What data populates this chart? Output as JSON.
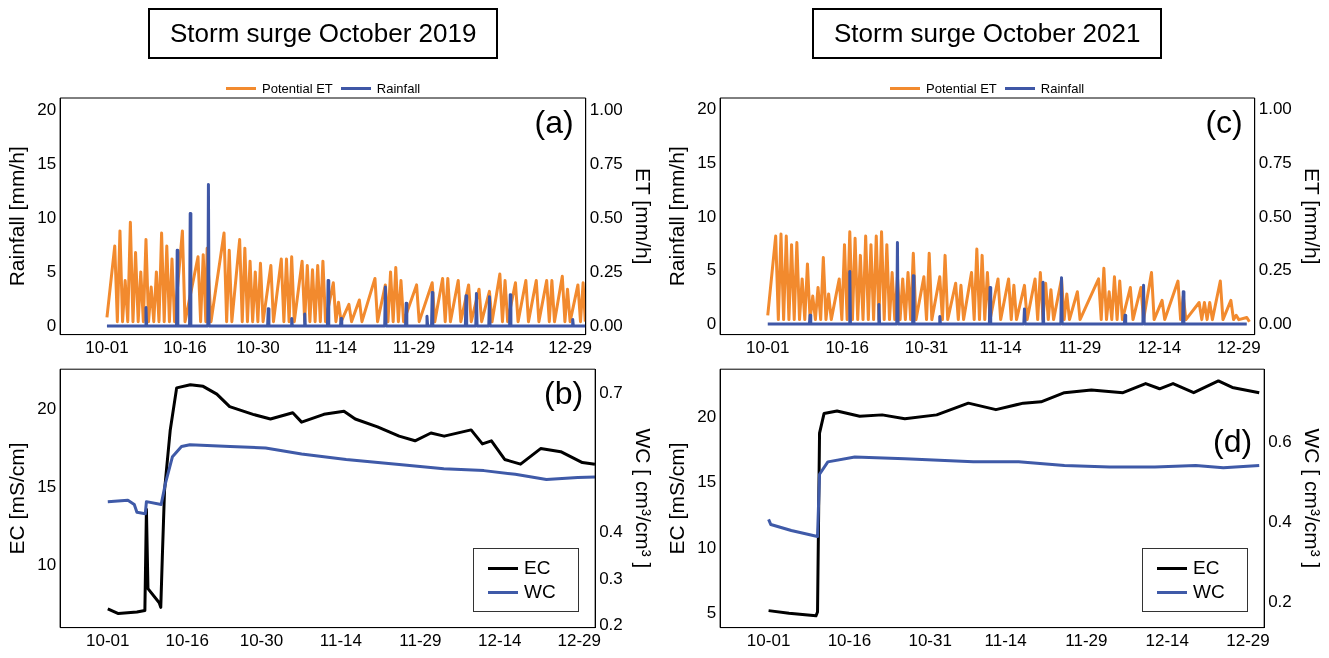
{
  "chart_data": [
    {
      "type": "line",
      "title": "Storm surge October 2019",
      "ylabel": "Rainfall [mm/h]",
      "y2label": "ET [mm/h]",
      "annotations": [
        "(a)"
      ],
      "legend": "top",
      "xlim": [
        "--09-22",
        "--12-31T23:59"
      ],
      "xticks": [
        {
          "value": "--10-01",
          "label": "10-01"
        },
        {
          "value": "--10-16",
          "label": "10-16"
        },
        {
          "value": "--10-30",
          "label": "10-30"
        },
        {
          "value": "--11-14",
          "label": "11-14"
        },
        {
          "value": "--11-29",
          "label": "11-29"
        },
        {
          "value": "--12-14",
          "label": "12-14"
        },
        {
          "value": "--12-29",
          "label": "12-29"
        }
      ],
      "ylim": [
        -0.8,
        21.1
      ],
      "yticks": [
        0,
        5,
        10,
        15,
        20
      ],
      "y2lim": [
        -0.04,
        1.055
      ],
      "y2ticks": [
        {
          "value": 0,
          "label": "0.00"
        },
        {
          "value": 0.25,
          "label": "0.25"
        },
        {
          "value": 0.5,
          "label": "0.50"
        },
        {
          "value": 0.75,
          "label": "0.75"
        },
        {
          "value": 1,
          "label": "1.00"
        }
      ],
      "series": [
        {
          "name": "Potential ET",
          "color": "#f28a2e",
          "axis": "y2",
          "x": [
            "--10-01T00:00",
            "--10-02T12:00",
            "--10-03T00:00",
            "--10-03T12:00",
            "--10-04T00:00",
            "--10-04T12:00",
            "--10-05T00:00",
            "--10-05T12:00",
            "--10-06T00:00",
            "--10-06T12:00",
            "--10-07T00:00",
            "--10-07T12:00",
            "--10-08T00:00",
            "--10-08T12:00",
            "--10-09T00:00",
            "--10-09T12:00",
            "--10-10T00:00",
            "--10-10T12:00",
            "--10-11T00:00",
            "--10-11T12:00",
            "--10-12T00:00",
            "--10-12T12:00",
            "--10-13T00:00",
            "--10-13T12:00",
            "--10-14T00:00",
            "--10-15T12:00",
            "--10-16T00:00",
            "--10-18T12:00",
            "--10-19T00:00",
            "--10-19T12:00",
            "--10-20T00:00",
            "--10-20T06:00",
            "--10-21T00:00",
            "--10-23T12:00",
            "--10-24T00:00",
            "--10-24T12:00",
            "--10-25T00:00",
            "--10-26T12:00",
            "--10-27T00:00",
            "--10-27T12:00",
            "--10-28T00:00",
            "--10-28T12:00",
            "--10-29T00:00",
            "--10-29T12:00",
            "--10-30T00:00",
            "--10-30T12:00",
            "--10-31T00:00",
            "--11-01T12:00",
            "--11-02T00:00",
            "--11-03T12:00",
            "--11-04T00:00",
            "--11-04T12:00",
            "--11-05T00:00",
            "--11-05T12:00",
            "--11-06T00:00",
            "--11-07T12:00",
            "--11-08T00:00",
            "--11-08T12:00",
            "--11-09T00:00",
            "--11-09T12:00",
            "--11-10T00:00",
            "--11-10T12:00",
            "--11-11T00:00",
            "--11-11T12:00",
            "--11-12T00:00",
            "--11-13T12:00",
            "--11-14T00:00",
            "--11-14T12:00",
            "--11-15T00:00",
            "--11-16T12:00",
            "--11-17T00:00",
            "--11-18T12:00",
            "--11-19T00:00",
            "--11-21T12:00",
            "--11-22T00:00",
            "--11-23T12:00",
            "--11-24T00:00",
            "--11-24T12:00",
            "--11-25T00:00",
            "--11-25T12:00",
            "--11-26T00:00",
            "--11-26T12:00",
            "--11-27T00:00",
            "--11-29T12:00",
            "--11-30T00:00",
            "--12-02T12:00",
            "--12-03T00:00",
            "--12-04T12:00",
            "--12-05T00:00",
            "--12-05T12:00",
            "--12-06T00:00",
            "--12-07T12:00",
            "--12-08T00:00",
            "--12-09T12:00",
            "--12-10T00:00",
            "--12-11T12:00",
            "--12-12T00:00",
            "--12-13T12:00",
            "--12-14T00:00",
            "--12-15T12:00",
            "--12-16T00:00",
            "--12-16T12:00",
            "--12-17T00:00",
            "--12-18T12:00",
            "--12-19T00:00",
            "--12-20T12:00",
            "--12-21T00:00",
            "--12-22T12:00",
            "--12-23T00:00",
            "--12-24T12:00",
            "--12-25T00:00",
            "--12-25T12:00",
            "--12-26T00:00",
            "--12-27T12:00",
            "--12-28T00:00",
            "--12-28T12:00",
            "--12-29T00:00",
            "--12-30T12:00",
            "--12-31T00:00",
            "--12-31T12:00",
            "--12-31T22:00"
          ],
          "values": [
            0.04,
            0.37,
            0.02,
            0.44,
            0.02,
            0.21,
            0.02,
            0.48,
            0.02,
            0.34,
            0.02,
            0.25,
            0.02,
            0.4,
            0.02,
            0.18,
            0.02,
            0.25,
            0.02,
            0.43,
            0.02,
            0.37,
            0.02,
            0.31,
            0.02,
            0.44,
            0.02,
            0.32,
            0.02,
            0.33,
            0.02,
            0.36,
            0.02,
            0.43,
            0.02,
            0.35,
            0.02,
            0.4,
            0.02,
            0.36,
            0.02,
            0.3,
            0.02,
            0.25,
            0.02,
            0.29,
            0.02,
            0.28,
            0.02,
            0.31,
            0.02,
            0.31,
            0.02,
            0.32,
            0.02,
            0.3,
            0.02,
            0.28,
            0.02,
            0.26,
            0.02,
            0.28,
            0.02,
            0.3,
            0.02,
            0.2,
            0.02,
            0.11,
            0.02,
            0.1,
            0.02,
            0.12,
            0.02,
            0.22,
            0.02,
            0.19,
            0.02,
            0.25,
            0.02,
            0.27,
            0.02,
            0.21,
            0.02,
            0.19,
            0.02,
            0.2,
            0.02,
            0.22,
            0.02,
            0.22,
            0.02,
            0.21,
            0.02,
            0.19,
            0.02,
            0.17,
            0.02,
            0.16,
            0.02,
            0.24,
            0.02,
            0.21,
            0.02,
            0.2,
            0.02,
            0.21,
            0.02,
            0.21,
            0.02,
            0.21,
            0.02,
            0.21,
            0.02,
            0.23,
            0.02,
            0.17,
            0.02,
            0.19,
            0.02,
            0.2,
            0.02
          ]
        },
        {
          "name": "Rainfall",
          "color": "#3f57a6",
          "x": [
            "--10-01T00:00",
            "--10-08T09:00",
            "--10-08T12:00",
            "--10-08T15:00",
            "--10-14T09:00",
            "--10-14T12:00",
            "--10-14T15:00",
            "--10-16T21:00",
            "--10-17T00:00",
            "--10-17T03:00",
            "--10-20T09:00",
            "--10-20T12:00",
            "--10-20T15:00",
            "--10-31T21:00",
            "--11-01T00:00",
            "--11-01T03:00",
            "--11-05T09:00",
            "--11-05T12:00",
            "--11-05T15:00",
            "--11-07T21:00",
            "--11-08T00:00",
            "--11-08T03:00",
            "--11-12T09:00",
            "--11-12T12:00",
            "--11-12T15:00",
            "--11-14T21:00",
            "--11-15T00:00",
            "--11-15T03:00",
            "--11-23T09:00",
            "--11-23T12:00",
            "--11-23T15:00",
            "--11-27T09:00",
            "--11-27T12:00",
            "--11-27T15:00",
            "--12-01T09:00",
            "--12-01T12:00",
            "--12-01T15:00",
            "--12-02T09:00",
            "--12-02T12:00",
            "--12-02T15:00",
            "--12-08T21:00",
            "--12-09T00:00",
            "--12-09T03:00",
            "--12-10T21:00",
            "--12-11T00:00",
            "--12-11T03:00",
            "--12-13T09:00",
            "--12-13T12:00",
            "--12-13T15:00",
            "--12-17T09:00",
            "--12-17T12:00",
            "--12-17T15:00",
            "--12-29T09:00",
            "--12-29T12:00",
            "--12-29T15:00",
            "--12-31T23:00"
          ],
          "values": [
            0,
            0,
            1.7,
            0,
            0,
            7.0,
            0,
            0,
            10.4,
            0,
            0,
            13.1,
            0,
            0,
            1.6,
            0,
            0,
            0.7,
            0,
            0,
            1.1,
            0,
            0,
            4.2,
            0,
            0,
            0.7,
            0,
            0,
            3.6,
            0,
            0,
            2.1,
            0,
            0,
            0.9,
            0,
            0,
            3.1,
            0,
            0,
            2.8,
            0,
            0,
            3.0,
            0,
            0,
            2.7,
            0,
            0,
            2.9,
            0,
            0,
            0.6,
            0,
            0
          ]
        }
      ]
    },
    {
      "type": "line",
      "title": "Storm surge October 2021",
      "ylabel": "Rainfall [mm/h]",
      "y2label": "ET [mm/h]",
      "annotations": [
        "(c)"
      ],
      "legend": "top",
      "xlim": [
        "--09-22",
        "--12-31T23:59"
      ],
      "xticks": [
        {
          "value": "--10-01",
          "label": "10-01"
        },
        {
          "value": "--10-16",
          "label": "10-16"
        },
        {
          "value": "--10-31",
          "label": "10-31"
        },
        {
          "value": "--11-14",
          "label": "11-14"
        },
        {
          "value": "--11-29",
          "label": "11-29"
        },
        {
          "value": "--12-14",
          "label": "12-14"
        },
        {
          "value": "--12-29",
          "label": "12-29"
        }
      ],
      "ylim": [
        -1,
        21.1
      ],
      "yticks": [
        0,
        5,
        10,
        15,
        20
      ],
      "y2lim": [
        -0.05,
        1.055
      ],
      "y2ticks": [
        {
          "value": 0,
          "label": "0.00"
        },
        {
          "value": 0.25,
          "label": "0.25"
        },
        {
          "value": 0.5,
          "label": "0.50"
        },
        {
          "value": 0.75,
          "label": "0.75"
        },
        {
          "value": 1,
          "label": "1.00"
        }
      ],
      "series": [
        {
          "name": "Potential ET",
          "color": "#f28a2e",
          "axis": "y2",
          "x": [
            "--10-01T00:00",
            "--10-02T12:00",
            "--10-03T00:00",
            "--10-03T12:00",
            "--10-04T00:00",
            "--10-04T12:00",
            "--10-05T00:00",
            "--10-05T12:00",
            "--10-06T00:00",
            "--10-06T12:00",
            "--10-07T00:00",
            "--10-07T12:00",
            "--10-08T00:00",
            "--10-08T12:00",
            "--10-09T00:00",
            "--10-09T12:00",
            "--10-10T00:00",
            "--10-10T12:00",
            "--10-11T00:00",
            "--10-11T12:00",
            "--10-12T00:00",
            "--10-12T12:00",
            "--10-13T00:00",
            "--10-14T12:00",
            "--10-15T00:00",
            "--10-15T12:00",
            "--10-16T00:00",
            "--10-16T12:00",
            "--10-17T00:00",
            "--10-17T12:00",
            "--10-18T00:00",
            "--10-18T12:00",
            "--10-19T00:00",
            "--10-19T12:00",
            "--10-20T00:00",
            "--10-20T12:00",
            "--10-21T00:00",
            "--10-21T12:00",
            "--10-22T00:00",
            "--10-22T12:00",
            "--10-23T00:00",
            "--10-23T12:00",
            "--10-24T00:00",
            "--10-24T12:00",
            "--10-25T00:00",
            "--10-25T12:00",
            "--10-26T00:00",
            "--10-26T12:00",
            "--10-27T00:00",
            "--10-27T12:00",
            "--10-28T00:00",
            "--10-28T12:00",
            "--10-29T00:00",
            "--10-30T12:00",
            "--10-31T00:00",
            "--10-31T12:00",
            "--11-01T00:00",
            "--11-02T12:00",
            "--11-03T00:00",
            "--11-03T12:00",
            "--11-04T00:00",
            "--11-05T12:00",
            "--11-06T00:00",
            "--11-06T12:00",
            "--11-07T00:00",
            "--11-08T12:00",
            "--11-09T00:00",
            "--11-09T12:00",
            "--11-10T00:00",
            "--11-10T12:00",
            "--11-11T00:00",
            "--11-11T12:00",
            "--11-12T00:00",
            "--11-13T12:00",
            "--11-14T00:00",
            "--11-15T12:00",
            "--11-16T00:00",
            "--11-16T12:00",
            "--11-17T00:00",
            "--11-18T12:00",
            "--11-19T00:00",
            "--11-20T12:00",
            "--11-21T00:00",
            "--11-21T12:00",
            "--11-22T00:00",
            "--11-22T12:00",
            "--11-23T00:00",
            "--11-23T12:00",
            "--11-24T00:00",
            "--11-25T12:00",
            "--11-26T00:00",
            "--11-26T12:00",
            "--11-27T00:00",
            "--11-28T12:00",
            "--11-29T00:00",
            "--12-02T12:00",
            "--12-03T00:00",
            "--12-03T12:00",
            "--12-04T00:00",
            "--12-04T12:00",
            "--12-05T00:00",
            "--12-05T12:00",
            "--12-06T00:00",
            "--12-06T12:00",
            "--12-07T00:00",
            "--12-08T12:00",
            "--12-09T00:00",
            "--12-10T12:00",
            "--12-11T00:00",
            "--12-12T12:00",
            "--12-13T00:00",
            "--12-14T12:00",
            "--12-15T00:00",
            "--12-17T12:00",
            "--12-18T00:00",
            "--12-18T12:00",
            "--12-19T00:00",
            "--12-21T12:00",
            "--12-22T00:00",
            "--12-22T12:00",
            "--12-23T00:00",
            "--12-23T12:00",
            "--12-24T00:00",
            "--12-25T12:00",
            "--12-26T00:00",
            "--12-27T12:00",
            "--12-28T00:00",
            "--12-28T12:00",
            "--12-29T00:00",
            "--12-30T12:00",
            "--12-31T00:00"
          ],
          "values": [
            0.04,
            0.41,
            0.02,
            0.42,
            0.02,
            0.41,
            0.02,
            0.37,
            0.02,
            0.38,
            0.02,
            0.21,
            0.02,
            0.28,
            0.02,
            0.13,
            0.02,
            0.17,
            0.02,
            0.31,
            0.02,
            0.14,
            0.02,
            0.21,
            0.02,
            0.37,
            0.02,
            0.43,
            0.02,
            0.4,
            0.02,
            0.32,
            0.02,
            0.41,
            0.02,
            0.37,
            0.02,
            0.41,
            0.02,
            0.43,
            0.02,
            0.37,
            0.02,
            0.24,
            0.02,
            0.22,
            0.02,
            0.21,
            0.02,
            0.24,
            0.02,
            0.33,
            0.02,
            0.22,
            0.02,
            0.33,
            0.02,
            0.22,
            0.02,
            0.32,
            0.02,
            0.19,
            0.02,
            0.18,
            0.02,
            0.24,
            0.02,
            0.35,
            0.02,
            0.32,
            0.02,
            0.24,
            0.02,
            0.21,
            0.02,
            0.21,
            0.02,
            0.18,
            0.02,
            0.18,
            0.02,
            0.21,
            0.02,
            0.24,
            0.02,
            0.19,
            0.02,
            0.16,
            0.02,
            0.21,
            0.02,
            0.14,
            0.02,
            0.15,
            0.02,
            0.21,
            0.02,
            0.26,
            0.02,
            0.15,
            0.02,
            0.22,
            0.02,
            0.2,
            0.02,
            0.17,
            0.02,
            0.17,
            0.02,
            0.24,
            0.02,
            0.11,
            0.02,
            0.2,
            0.02,
            0.13,
            0.02,
            0.1,
            0.02,
            0.1,
            0.02,
            0.1,
            0.02,
            0.2,
            0.02,
            0.11,
            0.02,
            0.04,
            0.02,
            0.03,
            0.01
          ]
        },
        {
          "name": "Rainfall",
          "color": "#3f57a6",
          "x": [
            "--10-01T00:00",
            "--10-08T21:00",
            "--10-09T00:00",
            "--10-09T03:00",
            "--10-16T09:00",
            "--10-16T12:00",
            "--10-16T15:00",
            "--10-21T21:00",
            "--10-22T00:00",
            "--10-22T03:00",
            "--10-25T09:00",
            "--10-25T12:00",
            "--10-25T15:00",
            "--10-28T09:00",
            "--10-28T12:00",
            "--10-28T15:00",
            "--11-02T09:00",
            "--11-02T12:00",
            "--11-02T15:00",
            "--11-11T21:00",
            "--11-12T00:00",
            "--11-12T03:00",
            "--11-18T09:00",
            "--11-18T12:00",
            "--11-18T15:00",
            "--11-21T21:00",
            "--11-22T00:00",
            "--11-22T03:00",
            "--11-25T09:00",
            "--11-25T12:00",
            "--11-25T15:00",
            "--12-07T09:00",
            "--12-07T12:00",
            "--12-07T15:00",
            "--12-10T21:00",
            "--12-11T00:00",
            "--12-11T03:00",
            "--12-18T09:00",
            "--12-18T12:00",
            "--12-18T15:00",
            "--12-30T12:00"
          ],
          "values": [
            0,
            0,
            0.8,
            0,
            0,
            4.9,
            0,
            0,
            1.8,
            0,
            0,
            7.6,
            0,
            0,
            4.5,
            0,
            0,
            0.7,
            0,
            0,
            3.4,
            0,
            0,
            1.4,
            0,
            0,
            3.9,
            0,
            0,
            4.3,
            0,
            0,
            0.8,
            0,
            0,
            3.6,
            0,
            0,
            3.0,
            0,
            0
          ]
        }
      ]
    },
    {
      "type": "line",
      "ylabel": "EC [mS/cm]",
      "y2label": "WC [ cm³/cm³ ]",
      "annotations": [
        "(b)"
      ],
      "legend": "bottom right",
      "xlim": [
        "--09-22",
        "--12-31T23:59"
      ],
      "xticks": [
        {
          "value": "--10-01",
          "label": "10-01"
        },
        {
          "value": "--10-16",
          "label": "10-16"
        },
        {
          "value": "--10-30",
          "label": "10-30"
        },
        {
          "value": "--11-14",
          "label": "11-14"
        },
        {
          "value": "--11-29",
          "label": "11-29"
        },
        {
          "value": "--12-14",
          "label": "12-14"
        },
        {
          "value": "--12-29",
          "label": "12-29"
        }
      ],
      "ylim": [
        6.0,
        22.6
      ],
      "yticks": [
        10,
        15,
        20
      ],
      "y2lim": [
        0.195,
        0.753
      ],
      "y2ticks": [
        0.2,
        0.3,
        0.4,
        0.7
      ],
      "series": [
        {
          "name": "EC",
          "color": "#000000",
          "x": [
            "--10-01T00:00",
            "--10-03T00:00",
            "--10-06T12:00",
            "--10-08T00:00",
            "--10-08T07:00",
            "--10-08T14:00",
            "--10-10T17:00",
            "--10-11T00:00",
            "--10-11T07:00",
            "--10-11T17:00",
            "--10-12T19:00",
            "--10-14T00:00",
            "--10-16T14:00",
            "--10-19T00:00",
            "--10-21T14:00",
            "--10-24T00:00",
            "--10-28T10:00",
            "--10-31T17:00",
            "--11-04T22:00",
            "--11-06T14:00",
            "--11-10T19:00",
            "--11-14T14:00",
            "--11-16T17:00",
            "--11-20T22:00",
            "--11-25T00:00",
            "--11-28T00:00",
            "--12-01T00:00",
            "--12-03T12:00",
            "--12-08T14:00",
            "--12-10T17:00",
            "--12-12T10:00",
            "--12-14T22:00",
            "--12-17T22:00",
            "--12-21T17:00",
            "--12-25T12:00",
            "--12-29T14:00",
            "--12-31T23:00"
          ],
          "values": [
            7.2,
            6.9,
            7.0,
            7.1,
            13.6,
            8.5,
            7.6,
            7.3,
            10.5,
            14.8,
            18.7,
            21.4,
            21.6,
            21.5,
            21.0,
            20.2,
            19.7,
            19.4,
            19.8,
            19.2,
            19.7,
            19.9,
            19.4,
            18.9,
            18.3,
            18.0,
            18.5,
            18.3,
            18.7,
            17.8,
            18.0,
            16.8,
            16.5,
            17.5,
            17.3,
            16.6,
            16.5
          ]
        },
        {
          "name": "WC",
          "color": "#3f5aa8",
          "axis": "y2",
          "x": [
            "--10-01T00:00",
            "--10-04T19:00",
            "--10-06T00:00",
            "--10-06T12:00",
            "--10-08T02:00",
            "--10-08T07:00",
            "--10-11T02:00",
            "--10-11T22:00",
            "--10-13T05:00",
            "--10-14T22:00",
            "--10-16T12:00",
            "--10-24T02:00",
            "--10-30T19:00",
            "--11-06T14:00",
            "--11-15T00:00",
            "--11-25T00:00",
            "--12-03T10:00",
            "--12-11T00:00",
            "--12-16T22:00",
            "--12-22T19:00",
            "--12-28T17:00",
            "--12-31T23:00"
          ],
          "values": [
            0.467,
            0.47,
            0.461,
            0.444,
            0.441,
            0.467,
            0.461,
            0.508,
            0.564,
            0.586,
            0.59,
            0.586,
            0.583,
            0.57,
            0.558,
            0.547,
            0.538,
            0.534,
            0.526,
            0.515,
            0.519,
            0.52
          ]
        }
      ]
    },
    {
      "type": "line",
      "ylabel": "EC [mS/cm]",
      "y2label": "WC [ cm³/cm³ ]",
      "annotations": [
        "(d)"
      ],
      "legend": "bottom right",
      "xlim": [
        "--09-22",
        "--12-31T23:59"
      ],
      "xticks": [
        {
          "value": "--10-01",
          "label": "10-01"
        },
        {
          "value": "--10-16",
          "label": "10-16"
        },
        {
          "value": "--10-31",
          "label": "10-31"
        },
        {
          "value": "--11-14",
          "label": "11-14"
        },
        {
          "value": "--11-29",
          "label": "11-29"
        },
        {
          "value": "--12-14",
          "label": "12-14"
        },
        {
          "value": "--12-29",
          "label": "12-29"
        }
      ],
      "ylim": [
        3.9,
        23.7
      ],
      "yticks": [
        5,
        10,
        15,
        20
      ],
      "y2lim": [
        0.137,
        0.784
      ],
      "y2ticks": [
        0.2,
        0.4,
        0.6
      ],
      "series": [
        {
          "name": "EC",
          "color": "#000000",
          "x": [
            "--10-01T00:00",
            "--10-04T19:00",
            "--10-09T19:00",
            "--10-10T02:00",
            "--10-10T11:00",
            "--10-11T07:00",
            "--10-13T17:00",
            "--10-17T22:00",
            "--10-22T02:00",
            "--10-26T07:00",
            "--11-01T05:00",
            "--11-07T02:00",
            "--11-12T05:00",
            "--11-17T07:00",
            "--11-20T14:00",
            "--11-24T22:00",
            "--11-29T22:00",
            "--12-05T19:00",
            "--12-10T00:00",
            "--12-12T14:00",
            "--12-15T02:00",
            "--12-18T22:00",
            "--12-23T12:00",
            "--12-26T02:00",
            "--12-31T02:00"
          ],
          "values": [
            5.2,
            5.0,
            4.8,
            5.1,
            18.8,
            20.3,
            20.5,
            20.1,
            20.2,
            19.9,
            20.2,
            21.1,
            20.6,
            21.1,
            21.2,
            21.9,
            22.1,
            21.9,
            22.6,
            22.2,
            22.6,
            21.9,
            22.8,
            22.3,
            21.9
          ]
        },
        {
          "name": "WC",
          "color": "#3f5aa8",
          "axis": "y2",
          "x": [
            "--10-01T00:00",
            "--10-01T10:00",
            "--10-05T05:00",
            "--10-10T02:00",
            "--10-10T11:00",
            "--10-12T00:00",
            "--10-17T00:00",
            "--10-26T07:00",
            "--11-08T00:00",
            "--11-16T10:00",
            "--11-24T22:00",
            "--12-03T07:00",
            "--12-11T17:00",
            "--12-19T07:00",
            "--12-24T10:00",
            "--12-31T02:00"
          ],
          "values": [
            0.408,
            0.395,
            0.38,
            0.365,
            0.521,
            0.552,
            0.564,
            0.56,
            0.552,
            0.552,
            0.543,
            0.539,
            0.539,
            0.543,
            0.537,
            0.543
          ]
        }
      ]
    }
  ]
}
